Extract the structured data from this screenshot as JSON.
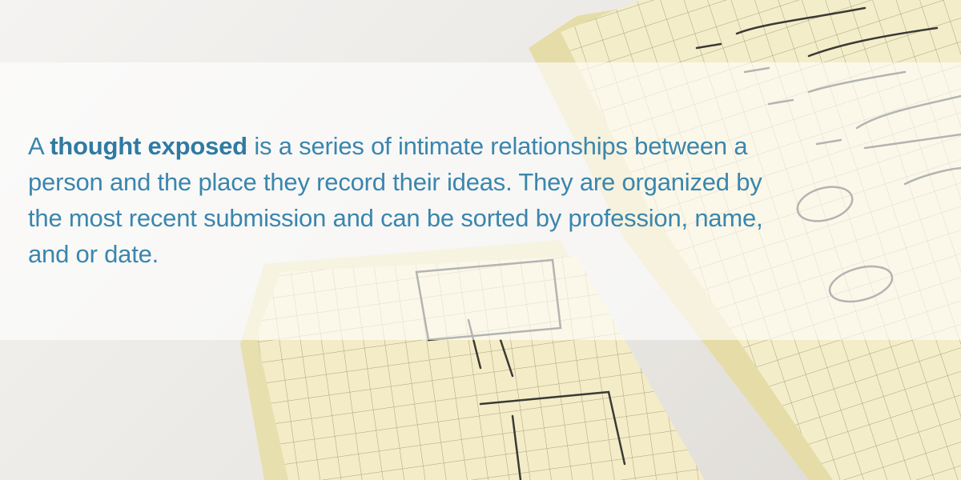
{
  "intro": {
    "prefix": "A ",
    "emphasis": "thought exposed",
    "rest": " is a series of intimate relationships between a person and the place they record their ideas. They are organized by the most recent submission and can be sorted by profession, name, and or date."
  }
}
